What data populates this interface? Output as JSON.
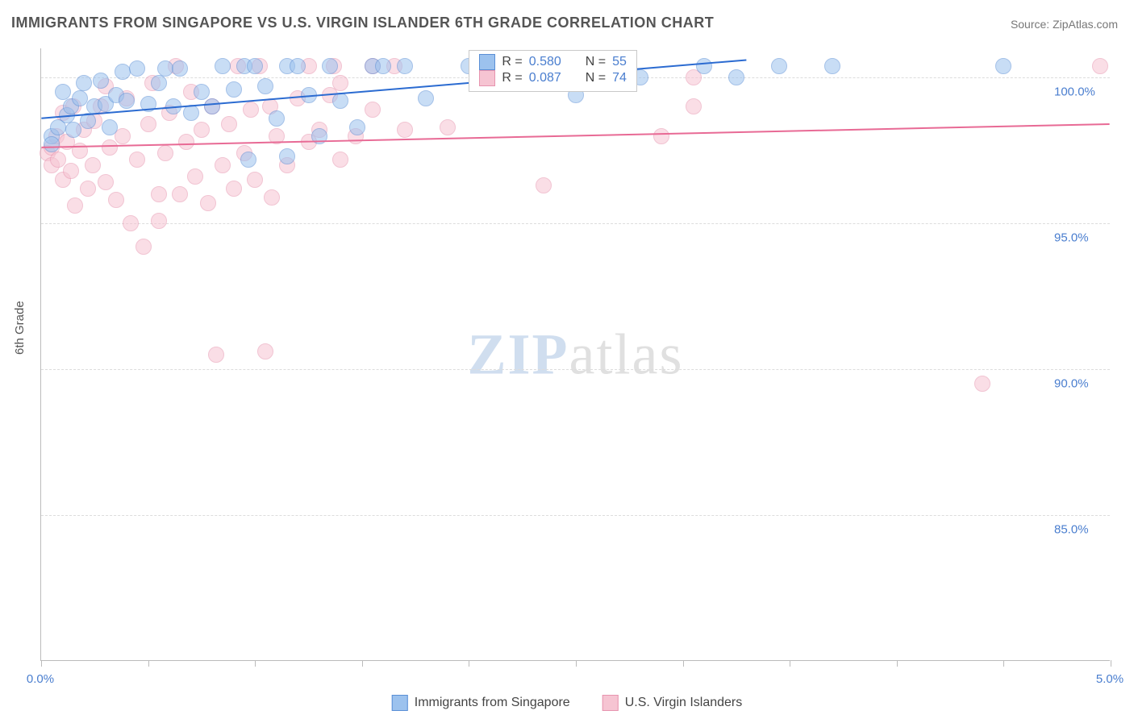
{
  "title": "IMMIGRANTS FROM SINGAPORE VS U.S. VIRGIN ISLANDER 6TH GRADE CORRELATION CHART",
  "source": "Source: ZipAtlas.com",
  "watermark": {
    "zip": "ZIP",
    "atlas": "atlas"
  },
  "chart": {
    "type": "scatter",
    "background_color": "#ffffff",
    "grid_color": "#dcdcdc",
    "axis_color": "#bbbbbb",
    "ylabel": "6th Grade",
    "ylabel_fontsize": 15,
    "ylabel_color": "#555555",
    "ytick_labels": [
      "100.0%",
      "95.0%",
      "90.0%",
      "85.0%"
    ],
    "ytick_values": [
      100,
      95,
      90,
      85
    ],
    "ytick_color": "#4a7ecf",
    "xlim": [
      0,
      5
    ],
    "ylim": [
      80,
      101
    ],
    "xtick_values": [
      0,
      0.5,
      1.0,
      1.5,
      2.0,
      2.5,
      3.0,
      3.5,
      4.0,
      4.5,
      5.0
    ],
    "xtick_labels_visible": {
      "0": "0.0%",
      "5": "5.0%"
    },
    "marker_radius": 10,
    "marker_opacity": 0.55,
    "series": [
      {
        "name": "Immigrants from Singapore",
        "color_fill": "#9cc2ee",
        "color_stroke": "#5a8fd6",
        "r_value": "0.580",
        "n_value": "55",
        "trend": {
          "x1": 0,
          "y1": 98.6,
          "x2": 3.3,
          "y2": 100.6,
          "color": "#2b6bd1",
          "width": 2
        },
        "points": [
          [
            0.05,
            98.0
          ],
          [
            0.05,
            97.7
          ],
          [
            0.08,
            98.3
          ],
          [
            0.1,
            99.5
          ],
          [
            0.12,
            98.7
          ],
          [
            0.14,
            99.0
          ],
          [
            0.15,
            98.2
          ],
          [
            0.18,
            99.3
          ],
          [
            0.2,
            99.8
          ],
          [
            0.22,
            98.5
          ],
          [
            0.25,
            99.0
          ],
          [
            0.28,
            99.9
          ],
          [
            0.3,
            99.1
          ],
          [
            0.32,
            98.3
          ],
          [
            0.35,
            99.4
          ],
          [
            0.38,
            100.2
          ],
          [
            0.4,
            99.2
          ],
          [
            0.45,
            100.3
          ],
          [
            0.5,
            99.1
          ],
          [
            0.55,
            99.8
          ],
          [
            0.58,
            100.3
          ],
          [
            0.62,
            99.0
          ],
          [
            0.65,
            100.3
          ],
          [
            0.7,
            98.8
          ],
          [
            0.75,
            99.5
          ],
          [
            0.8,
            99.0
          ],
          [
            0.85,
            100.4
          ],
          [
            0.9,
            99.6
          ],
          [
            0.95,
            100.4
          ],
          [
            0.97,
            97.2
          ],
          [
            1.0,
            100.4
          ],
          [
            1.05,
            99.7
          ],
          [
            1.1,
            98.6
          ],
          [
            1.15,
            100.4
          ],
          [
            1.2,
            100.4
          ],
          [
            1.25,
            99.4
          ],
          [
            1.3,
            98.0
          ],
          [
            1.15,
            97.3
          ],
          [
            1.35,
            100.4
          ],
          [
            1.4,
            99.2
          ],
          [
            1.48,
            98.3
          ],
          [
            1.55,
            100.4
          ],
          [
            1.6,
            100.4
          ],
          [
            1.7,
            100.4
          ],
          [
            1.8,
            99.3
          ],
          [
            2.0,
            100.4
          ],
          [
            2.2,
            100.0
          ],
          [
            2.45,
            100.0
          ],
          [
            2.5,
            99.4
          ],
          [
            2.8,
            100.0
          ],
          [
            3.1,
            100.4
          ],
          [
            3.25,
            100.0
          ],
          [
            3.45,
            100.4
          ],
          [
            3.7,
            100.4
          ],
          [
            4.5,
            100.4
          ]
        ]
      },
      {
        "name": "U.S. Virgin Islanders",
        "color_fill": "#f6c4d2",
        "color_stroke": "#e794af",
        "r_value": "0.087",
        "n_value": "74",
        "trend": {
          "x1": 0,
          "y1": 97.6,
          "x2": 5.0,
          "y2": 98.4,
          "color": "#e86a95",
          "width": 2
        },
        "points": [
          [
            0.03,
            97.4
          ],
          [
            0.05,
            97.0
          ],
          [
            0.05,
            97.6
          ],
          [
            0.07,
            98.0
          ],
          [
            0.08,
            97.2
          ],
          [
            0.1,
            96.5
          ],
          [
            0.1,
            98.8
          ],
          [
            0.12,
            97.8
          ],
          [
            0.14,
            96.8
          ],
          [
            0.15,
            99.0
          ],
          [
            0.16,
            95.6
          ],
          [
            0.18,
            97.5
          ],
          [
            0.2,
            98.2
          ],
          [
            0.22,
            96.2
          ],
          [
            0.24,
            97.0
          ],
          [
            0.25,
            98.5
          ],
          [
            0.28,
            99.0
          ],
          [
            0.3,
            96.4
          ],
          [
            0.3,
            99.7
          ],
          [
            0.32,
            97.6
          ],
          [
            0.35,
            95.8
          ],
          [
            0.38,
            98.0
          ],
          [
            0.4,
            99.3
          ],
          [
            0.42,
            95.0
          ],
          [
            0.45,
            97.2
          ],
          [
            0.48,
            94.2
          ],
          [
            0.5,
            98.4
          ],
          [
            0.52,
            99.8
          ],
          [
            0.55,
            96.0
          ],
          [
            0.55,
            95.1
          ],
          [
            0.58,
            97.4
          ],
          [
            0.6,
            98.8
          ],
          [
            0.63,
            100.4
          ],
          [
            0.65,
            96.0
          ],
          [
            0.68,
            97.8
          ],
          [
            0.7,
            99.5
          ],
          [
            0.72,
            96.6
          ],
          [
            0.75,
            98.2
          ],
          [
            0.78,
            95.7
          ],
          [
            0.8,
            99.0
          ],
          [
            0.82,
            90.5
          ],
          [
            0.85,
            97.0
          ],
          [
            0.88,
            98.4
          ],
          [
            0.9,
            96.2
          ],
          [
            0.92,
            100.4
          ],
          [
            0.95,
            97.4
          ],
          [
            0.98,
            98.9
          ],
          [
            1.0,
            96.5
          ],
          [
            1.02,
            100.4
          ],
          [
            1.05,
            90.6
          ],
          [
            1.07,
            99.0
          ],
          [
            1.08,
            95.9
          ],
          [
            1.1,
            98.0
          ],
          [
            1.15,
            97.0
          ],
          [
            1.2,
            99.3
          ],
          [
            1.25,
            97.8
          ],
          [
            1.25,
            100.4
          ],
          [
            1.3,
            98.2
          ],
          [
            1.35,
            99.4
          ],
          [
            1.37,
            100.4
          ],
          [
            1.4,
            97.2
          ],
          [
            1.47,
            98.0
          ],
          [
            1.55,
            98.9
          ],
          [
            1.4,
            99.8
          ],
          [
            1.55,
            100.4
          ],
          [
            1.65,
            100.4
          ],
          [
            1.7,
            98.2
          ],
          [
            1.9,
            98.3
          ],
          [
            2.35,
            96.3
          ],
          [
            2.9,
            98.0
          ],
          [
            3.05,
            100.0
          ],
          [
            3.05,
            99.0
          ],
          [
            4.4,
            89.5
          ],
          [
            4.95,
            100.4
          ]
        ]
      }
    ],
    "legend_box": {
      "rows": [
        {
          "swatch_fill": "#9cc2ee",
          "swatch_stroke": "#5a8fd6",
          "r_label": "R = ",
          "r_val": "0.580",
          "n_label": "N = ",
          "n_val": "55"
        },
        {
          "swatch_fill": "#f6c4d2",
          "swatch_stroke": "#e794af",
          "r_label": "R = ",
          "r_val": "0.087",
          "n_label": "N = ",
          "n_val": "74"
        }
      ]
    },
    "bottom_legend": [
      {
        "swatch_fill": "#9cc2ee",
        "swatch_stroke": "#5a8fd6",
        "label": "Immigrants from Singapore"
      },
      {
        "swatch_fill": "#f6c4d2",
        "swatch_stroke": "#e794af",
        "label": "U.S. Virgin Islanders"
      }
    ]
  }
}
